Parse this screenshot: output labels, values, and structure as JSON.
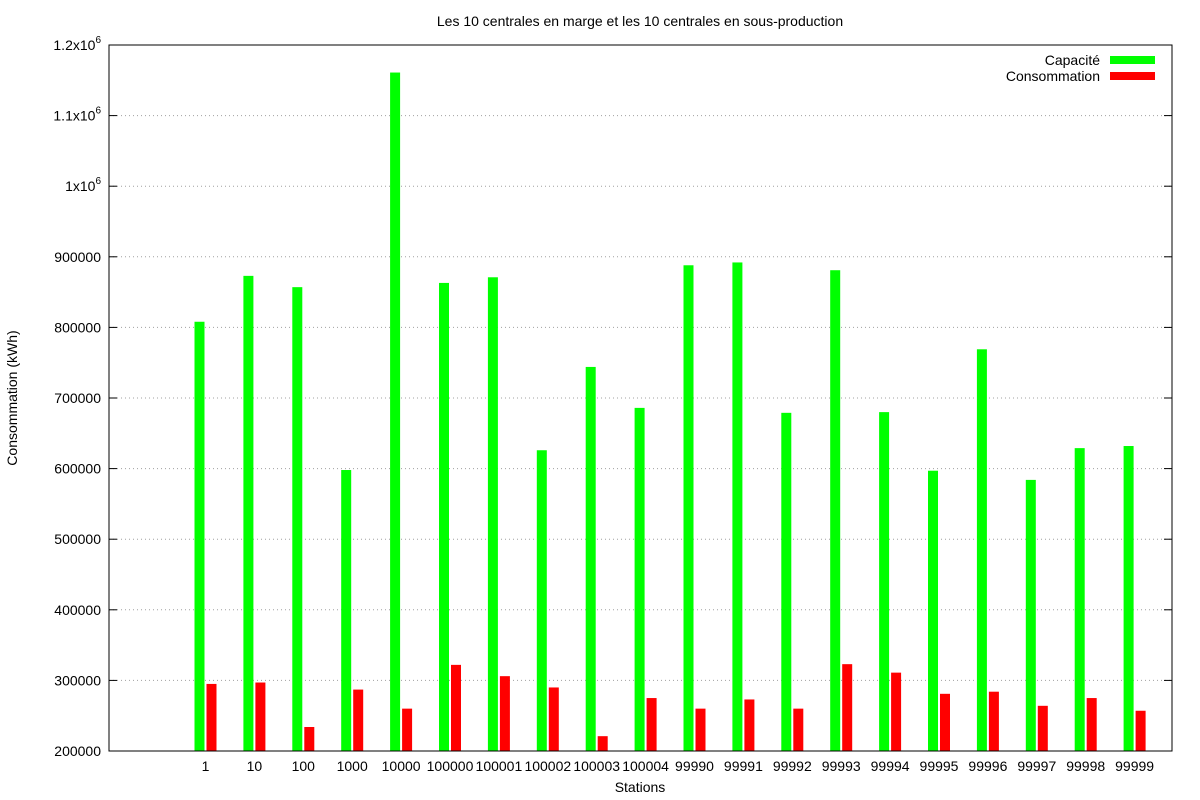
{
  "chart_data": {
    "type": "bar",
    "title": "Les 10 centrales en marge et les 10 centrales en sous-production",
    "xlabel": "Stations",
    "ylabel": "Consommation (kWh)",
    "ylim": [
      200000,
      1200000
    ],
    "yticks": [
      200000,
      300000,
      400000,
      500000,
      600000,
      700000,
      800000,
      900000,
      1000000,
      1100000,
      1200000
    ],
    "ytick_labels": [
      "200000",
      "300000",
      "400000",
      "500000",
      "600000",
      "700000",
      "800000",
      "900000",
      "1x10^6",
      "1.1x10^6",
      "1.2x10^6"
    ],
    "grid": "horizontal dotted",
    "legend_position": "top-right",
    "categories": [
      "1",
      "10",
      "100",
      "1000",
      "10000",
      "100000",
      "100001",
      "100002",
      "100003",
      "100004",
      "99990",
      "99991",
      "99992",
      "99993",
      "99994",
      "99995",
      "99996",
      "99997",
      "99998",
      "99999"
    ],
    "series": [
      {
        "name": "Capacité",
        "color": "#00ff00",
        "values": [
          808000,
          873000,
          857000,
          598000,
          1161000,
          863000,
          871000,
          626000,
          744000,
          686000,
          888000,
          892000,
          679000,
          881000,
          680000,
          597000,
          769000,
          584000,
          629000,
          632000
        ]
      },
      {
        "name": "Consommation",
        "color": "#ff0000",
        "values": [
          295000,
          297000,
          234000,
          287000,
          260000,
          322000,
          306000,
          290000,
          221000,
          275000,
          260000,
          273000,
          260000,
          323000,
          311000,
          281000,
          284000,
          264000,
          275000,
          257000
        ]
      }
    ]
  }
}
